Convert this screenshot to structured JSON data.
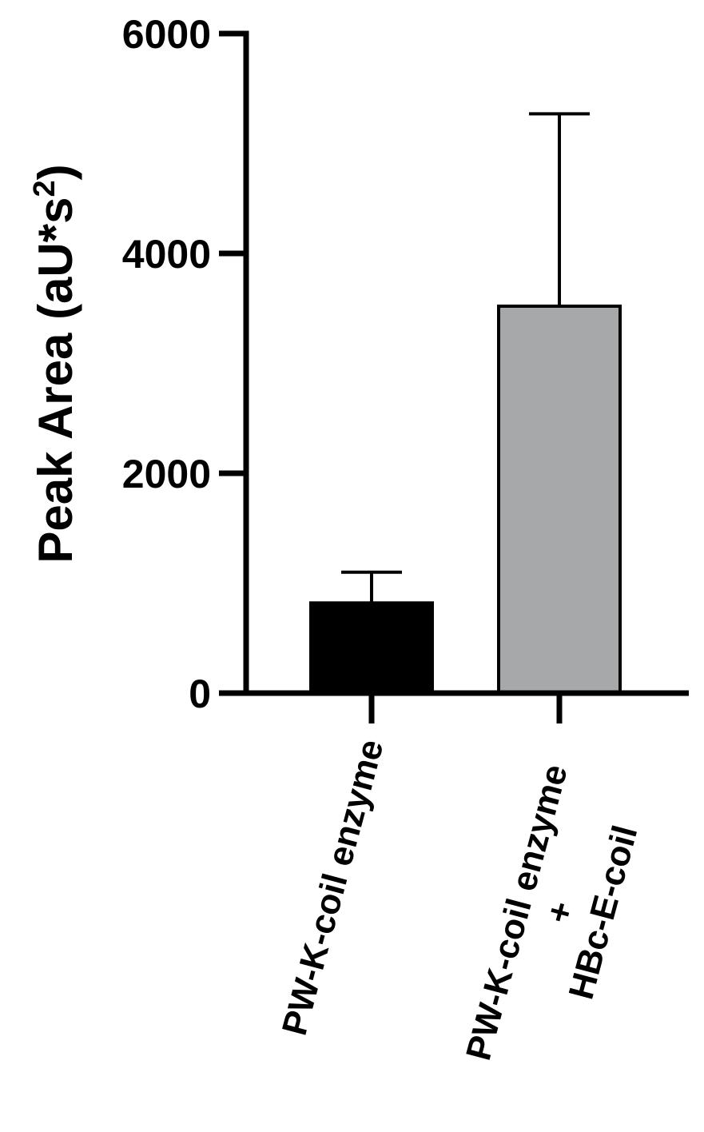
{
  "chart_data": {
    "type": "bar",
    "title": "",
    "ylabel_main": "Peak Area (aU*s",
    "ylabel_superscript": "2",
    "ylabel_close": ")",
    "ylim": [
      0,
      6000
    ],
    "yticks": [
      0,
      2000,
      4000,
      6000
    ],
    "ytick_labels": [
      "0",
      "2000",
      "4000",
      "6000"
    ],
    "grid": false,
    "categories": [
      {
        "lines": [
          "PW-K-coil enzyme"
        ]
      },
      {
        "lines": [
          "PW-K-coil enzyme",
          "+",
          "HBc-E-coil"
        ]
      }
    ],
    "values": [
      820,
      3520
    ],
    "errors": [
      280,
      1750
    ],
    "colors": [
      "#000000",
      "#a7a8aa"
    ]
  }
}
